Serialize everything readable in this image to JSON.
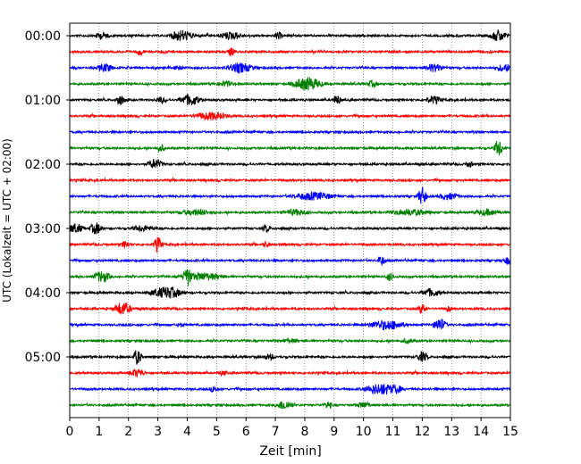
{
  "chart_data": {
    "type": "line",
    "title": "",
    "xlabel": "Zeit  [min]",
    "ylabel": "UTC (Lokalzeit = UTC + 02:00)",
    "xlim": [
      0,
      15
    ],
    "x_ticks": [
      0,
      1,
      2,
      3,
      4,
      5,
      6,
      7,
      8,
      9,
      10,
      11,
      12,
      13,
      14,
      15
    ],
    "y_tick_labels": [
      "00:00",
      "01:00",
      "02:00",
      "03:00",
      "04:00",
      "05:00"
    ],
    "grid": "vertical dotted lines at each minute",
    "legend": "none",
    "trace_interval_min": 15,
    "color_cycle": [
      "#000000",
      "#ff0000",
      "#0000ff",
      "#008000"
    ],
    "traces": [
      {
        "start": "00:00",
        "color": "#000000",
        "events": [
          [
            3.8,
            0.45,
            7
          ],
          [
            5.5,
            0.5,
            5
          ],
          [
            14.6,
            0.3,
            7
          ],
          [
            1.1,
            0.3,
            4
          ],
          [
            7.1,
            0.1,
            5
          ]
        ]
      },
      {
        "start": "00:15",
        "color": "#ff0000",
        "events": [
          [
            2.4,
            0.1,
            5
          ],
          [
            5.5,
            0.1,
            5
          ]
        ]
      },
      {
        "start": "00:30",
        "color": "#0000ff",
        "events": [
          [
            1.2,
            0.3,
            5
          ],
          [
            3.7,
            0.1,
            5
          ],
          [
            5.8,
            0.6,
            6
          ],
          [
            12.4,
            0.4,
            5
          ],
          [
            14.8,
            0.3,
            5
          ]
        ]
      },
      {
        "start": "00:45",
        "color": "#008000",
        "events": [
          [
            5.3,
            0.3,
            4
          ],
          [
            8.1,
            0.6,
            8
          ],
          [
            10.3,
            0.2,
            4
          ]
        ]
      },
      {
        "start": "01:00",
        "color": "#000000",
        "events": [
          [
            1.7,
            0.1,
            7
          ],
          [
            4.1,
            0.4,
            7
          ],
          [
            9.1,
            0.1,
            6
          ],
          [
            12.4,
            0.3,
            5
          ],
          [
            3.1,
            0.2,
            4
          ]
        ]
      },
      {
        "start": "01:15",
        "color": "#ff0000",
        "events": [
          [
            4.8,
            0.8,
            5
          ]
        ]
      },
      {
        "start": "01:30",
        "color": "#0000ff",
        "events": []
      },
      {
        "start": "01:45",
        "color": "#008000",
        "events": [
          [
            3.1,
            0.1,
            5
          ],
          [
            14.6,
            0.1,
            10
          ]
        ]
      },
      {
        "start": "02:00",
        "color": "#000000",
        "events": [
          [
            2.9,
            0.3,
            6
          ],
          [
            13.6,
            0.1,
            4
          ]
        ]
      },
      {
        "start": "02:15",
        "color": "#ff0000",
        "events": []
      },
      {
        "start": "02:30",
        "color": "#0000ff",
        "events": [
          [
            8.3,
            1.0,
            5
          ],
          [
            12.0,
            0.1,
            11
          ],
          [
            12.9,
            0.5,
            4
          ]
        ]
      },
      {
        "start": "02:45",
        "color": "#008000",
        "events": [
          [
            4.3,
            0.8,
            4
          ],
          [
            7.7,
            0.6,
            4
          ],
          [
            11.6,
            1.0,
            4
          ],
          [
            14.2,
            0.6,
            4
          ]
        ]
      },
      {
        "start": "03:00",
        "color": "#000000",
        "events": [
          [
            0.2,
            0.3,
            6
          ],
          [
            0.9,
            0.2,
            7
          ],
          [
            2.5,
            0.5,
            4
          ],
          [
            6.7,
            0.1,
            5
          ]
        ]
      },
      {
        "start": "03:15",
        "color": "#ff0000",
        "events": [
          [
            1.9,
            0.1,
            5
          ],
          [
            3.0,
            0.1,
            9
          ],
          [
            6.7,
            0.1,
            4
          ]
        ]
      },
      {
        "start": "03:30",
        "color": "#0000ff",
        "events": [
          [
            10.6,
            0.1,
            6
          ],
          [
            14.9,
            0.1,
            5
          ]
        ]
      },
      {
        "start": "03:45",
        "color": "#008000",
        "events": [
          [
            1.1,
            0.3,
            7
          ],
          [
            4.0,
            0.1,
            12
          ],
          [
            4.5,
            1.0,
            5
          ],
          [
            10.9,
            0.1,
            5
          ]
        ]
      },
      {
        "start": "04:00",
        "color": "#000000",
        "events": [
          [
            3.3,
            0.7,
            7
          ],
          [
            12.3,
            0.4,
            5
          ]
        ]
      },
      {
        "start": "04:15",
        "color": "#ff0000",
        "events": [
          [
            1.8,
            0.3,
            8
          ],
          [
            12.0,
            0.1,
            6
          ],
          [
            12.9,
            0.1,
            4
          ]
        ]
      },
      {
        "start": "04:30",
        "color": "#0000ff",
        "events": [
          [
            10.8,
            0.8,
            6
          ],
          [
            12.6,
            0.2,
            8
          ],
          [
            3.8,
            0.1,
            3
          ]
        ]
      },
      {
        "start": "04:45",
        "color": "#008000",
        "events": [
          [
            7.5,
            0.4,
            3
          ],
          [
            11.5,
            0.3,
            3
          ]
        ]
      },
      {
        "start": "05:00",
        "color": "#000000",
        "events": [
          [
            2.3,
            0.1,
            9
          ],
          [
            6.8,
            0.2,
            4
          ],
          [
            12.0,
            0.2,
            6
          ]
        ]
      },
      {
        "start": "05:15",
        "color": "#ff0000",
        "events": [
          [
            2.3,
            0.3,
            5
          ],
          [
            5.2,
            0.2,
            3
          ]
        ]
      },
      {
        "start": "05:30",
        "color": "#0000ff",
        "events": [
          [
            4.9,
            0.1,
            4
          ],
          [
            10.6,
            0.7,
            7
          ],
          [
            11.1,
            0.2,
            6
          ]
        ]
      },
      {
        "start": "05:45",
        "color": "#008000",
        "events": [
          [
            7.3,
            0.3,
            6
          ],
          [
            8.8,
            0.1,
            5
          ],
          [
            10.0,
            0.3,
            4
          ]
        ]
      }
    ]
  }
}
